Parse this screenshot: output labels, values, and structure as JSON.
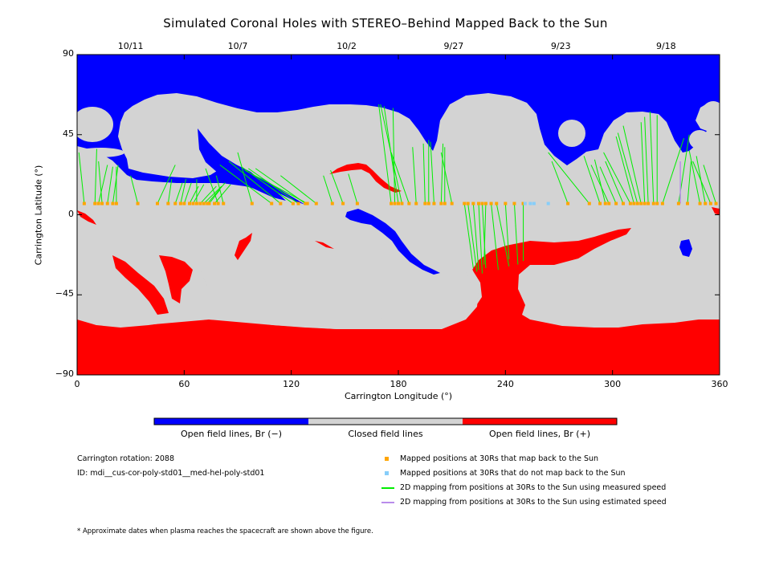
{
  "chart_data": {
    "type": "map",
    "title": "Simulated Coronal Holes with STEREO–Behind Mapped Back to the Sun",
    "xlabel": "Carrington Longitude (°)",
    "ylabel": "Carrington Latitude (°)",
    "xlim": [
      0,
      360
    ],
    "ylim": [
      -90,
      90
    ],
    "x_ticks": [
      "0",
      "60",
      "120",
      "180",
      "240",
      "300",
      "360"
    ],
    "x_tick_values": [
      0,
      60,
      120,
      180,
      240,
      300,
      360
    ],
    "y_ticks": [
      "90",
      "45",
      "0",
      "−45",
      "−90"
    ],
    "y_tick_values": [
      90,
      45,
      0,
      -45,
      -90
    ],
    "top_dates": [
      {
        "label": "10/11",
        "lon": 30
      },
      {
        "label": "10/7",
        "lon": 90
      },
      {
        "label": "10/2",
        "lon": 151
      },
      {
        "label": "9/27",
        "lon": 211
      },
      {
        "label": "9/23",
        "lon": 271
      },
      {
        "label": "9/18",
        "lon": 330
      }
    ],
    "colorbar": [
      {
        "label": "Open field lines, Br (−)",
        "color": "#0000ff"
      },
      {
        "label": "Closed field lines",
        "color": "#d3d3d3"
      },
      {
        "label": "Open field lines, Br (+)",
        "color": "#ff0000"
      }
    ],
    "mapped_points": {
      "lat": 6.3,
      "lons": [
        4,
        10,
        12,
        14,
        17,
        20,
        22,
        34,
        45,
        51,
        55,
        58,
        60,
        63,
        65,
        67,
        69,
        71,
        73,
        74,
        77,
        79,
        82,
        98,
        109,
        114,
        121,
        124,
        128,
        129,
        134,
        143,
        149,
        157,
        176,
        178,
        180,
        182,
        186,
        190,
        195,
        197,
        200,
        204,
        206,
        210,
        217,
        219,
        222,
        225,
        227,
        229,
        232,
        235,
        240,
        245,
        250,
        275,
        287,
        293,
        296,
        298,
        302,
        306,
        310,
        312,
        314,
        316,
        318,
        320,
        323,
        325,
        328,
        337,
        342,
        349,
        352,
        355,
        358
      ],
      "origins_lat": [
        35,
        37,
        28,
        30,
        27,
        28,
        27,
        22,
        28,
        20,
        18,
        20,
        18,
        16,
        17,
        20,
        16,
        16,
        18,
        14,
        17,
        26,
        22,
        35,
        28,
        30,
        27,
        26,
        26,
        25,
        22,
        22,
        25,
        23,
        62,
        60,
        61,
        62,
        35,
        38,
        40,
        42,
        41,
        40,
        38,
        35,
        -30,
        -32,
        -31,
        -33,
        -30,
        -28,
        -31,
        -29,
        -25,
        -28,
        -26,
        30,
        35,
        33,
        31,
        28,
        27,
        30,
        35,
        44,
        46,
        50,
        52,
        55,
        58,
        56,
        43,
        45,
        30,
        36,
        33,
        30,
        28
      ],
      "origins_lon": [
        1,
        11,
        17,
        12,
        20,
        23,
        22,
        30,
        55,
        53,
        59,
        61,
        64,
        68,
        71,
        67,
        78,
        81,
        83,
        80,
        86,
        72,
        78,
        90,
        80,
        85,
        92,
        96,
        100,
        94,
        114,
        138,
        142,
        152,
        169,
        177,
        172,
        170,
        176,
        188,
        194,
        197,
        198,
        205,
        206,
        204,
        222,
        224,
        225,
        227,
        229,
        228,
        236,
        242,
        242,
        247,
        250,
        266,
        264,
        284,
        290,
        288,
        293,
        296,
        295,
        302,
        303,
        306,
        316,
        318,
        321,
        325,
        340,
        343,
        344,
        343,
        347,
        345,
        351
      ]
    },
    "unmapped_points": {
      "lat": 6.3,
      "lons": [
        251,
        254,
        256,
        264
      ]
    },
    "estimated_mapping": {
      "from_lat": 30,
      "to_lat": 6.3,
      "lon": 338
    },
    "info": {
      "rotation": "Carrington rotation: 2088",
      "id": "ID: mdi__cus-cor-poly-std01__med-hel-poly-std01"
    },
    "legend": [
      {
        "label": "Mapped positions at 30Rs that map back to the Sun",
        "color": "#ffa500",
        "kind": "square"
      },
      {
        "label": "Mapped positions at 30Rs that do not map back to the Sun",
        "color": "#87cefa",
        "kind": "square"
      },
      {
        "label": "2D mapping from positions at 30Rs to the Sun using measured speed",
        "color": "#00ee00",
        "kind": "line"
      },
      {
        "label": "2D mapping from positions at 30Rs to the Sun using estimated speed",
        "color": "#b98ceb",
        "kind": "line"
      }
    ],
    "footnote": "* Approximate dates when plasma reaches the spacecraft are shown above the figure."
  }
}
